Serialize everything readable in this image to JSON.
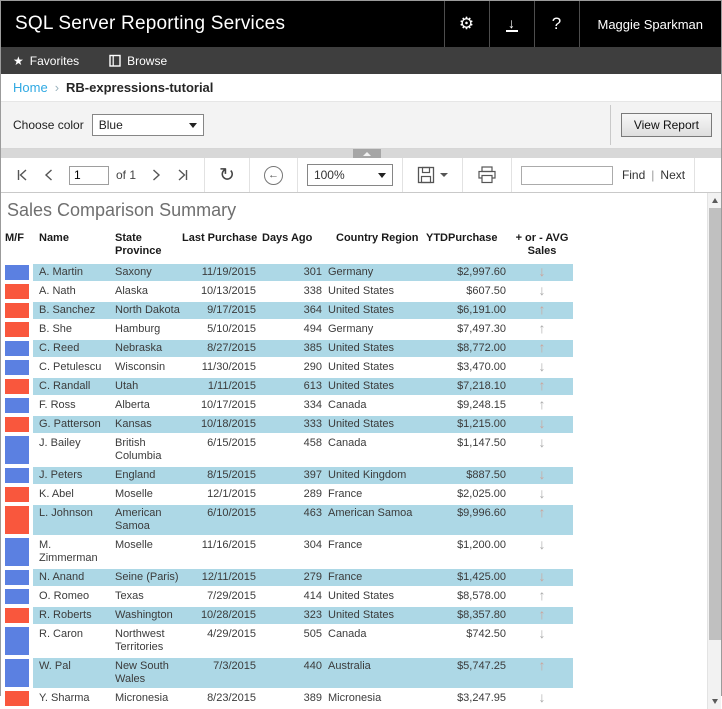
{
  "app": {
    "title": "SQL Server Reporting Services",
    "user": "Maggie Sparkman"
  },
  "nav": {
    "favorites": "Favorites",
    "browse": "Browse"
  },
  "breadcrumb": {
    "home": "Home",
    "separator": "›",
    "current": "RB-expressions-tutorial"
  },
  "parameters": {
    "label": "Choose color",
    "value": "Blue",
    "view_report": "View Report"
  },
  "toolbar": {
    "page_value": "1",
    "of_label": "of 1",
    "zoom_value": "100%",
    "find_label": "Find",
    "separator": "|",
    "next_label": "Next"
  },
  "icons": {
    "gear": "⚙",
    "download": "↓",
    "help": "?",
    "favorites_star": "★",
    "back_arrow": "←",
    "refresh": "↻",
    "up_arrow": "↑",
    "down_arrow": "↓"
  },
  "colors": {
    "male_swatch": "#5b80e1",
    "female_swatch": "#f9573d",
    "row_highlight": "#add8e6",
    "link_blue": "#2fa9e3"
  },
  "report": {
    "title": "Sales Comparison Summary",
    "columns": [
      "M/F",
      "Name",
      "State\nProvince",
      "Last Purchase",
      "Days Ago",
      "Country Region",
      "YTDPurchase",
      "+ or - AVG\nSales"
    ],
    "rows": [
      {
        "swatch": "blue",
        "name": "A. Martin",
        "state": "Saxony",
        "last_purchase": "11/19/2015",
        "days_ago": "301",
        "country": "Germany",
        "ytd_purchase": "$2,997.60",
        "trend": "down"
      },
      {
        "swatch": "red",
        "name": "A. Nath",
        "state": "Alaska",
        "last_purchase": "10/13/2015",
        "days_ago": "338",
        "country": "United States",
        "ytd_purchase": "$607.50",
        "trend": "down"
      },
      {
        "swatch": "red",
        "name": "B. Sanchez",
        "state": "North Dakota",
        "last_purchase": "9/17/2015",
        "days_ago": "364",
        "country": "United States",
        "ytd_purchase": "$6,191.00",
        "trend": "up"
      },
      {
        "swatch": "red",
        "name": "B. She",
        "state": "Hamburg",
        "last_purchase": "5/10/2015",
        "days_ago": "494",
        "country": "Germany",
        "ytd_purchase": "$7,497.30",
        "trend": "up"
      },
      {
        "swatch": "blue",
        "name": "C. Reed",
        "state": "Nebraska",
        "last_purchase": "8/27/2015",
        "days_ago": "385",
        "country": "United States",
        "ytd_purchase": "$8,772.00",
        "trend": "up"
      },
      {
        "swatch": "blue",
        "name": "C. Petulescu",
        "state": "Wisconsin",
        "last_purchase": "11/30/2015",
        "days_ago": "290",
        "country": "United States",
        "ytd_purchase": "$3,470.00",
        "trend": "down"
      },
      {
        "swatch": "red",
        "name": "C. Randall",
        "state": "Utah",
        "last_purchase": "1/11/2015",
        "days_ago": "613",
        "country": "United States",
        "ytd_purchase": "$7,218.10",
        "trend": "up"
      },
      {
        "swatch": "blue",
        "name": "F. Ross",
        "state": "Alberta",
        "last_purchase": "10/17/2015",
        "days_ago": "334",
        "country": "Canada",
        "ytd_purchase": "$9,248.15",
        "trend": "up"
      },
      {
        "swatch": "red",
        "name": "G. Patterson",
        "state": "Kansas",
        "last_purchase": "10/18/2015",
        "days_ago": "333",
        "country": "United States",
        "ytd_purchase": "$1,215.00",
        "trend": "down"
      },
      {
        "swatch": "blue",
        "name": "J. Bailey",
        "state": "British Columbia",
        "last_purchase": "6/15/2015",
        "days_ago": "458",
        "country": "Canada",
        "ytd_purchase": "$1,147.50",
        "trend": "down"
      },
      {
        "swatch": "blue",
        "name": "J. Peters",
        "state": "England",
        "last_purchase": "8/15/2015",
        "days_ago": "397",
        "country": "United Kingdom",
        "ytd_purchase": "$887.50",
        "trend": "down"
      },
      {
        "swatch": "red",
        "name": "K. Abel",
        "state": "Moselle",
        "last_purchase": "12/1/2015",
        "days_ago": "289",
        "country": "France",
        "ytd_purchase": "$2,025.00",
        "trend": "down"
      },
      {
        "swatch": "red",
        "name": "L. Johnson",
        "state": "American Samoa",
        "last_purchase": "6/10/2015",
        "days_ago": "463",
        "country": "American Samoa",
        "ytd_purchase": "$9,996.60",
        "trend": "up"
      },
      {
        "swatch": "blue",
        "name": "M. Zimmerman",
        "state": "Moselle",
        "last_purchase": "11/16/2015",
        "days_ago": "304",
        "country": "France",
        "ytd_purchase": "$1,200.00",
        "trend": "down"
      },
      {
        "swatch": "blue",
        "name": "N. Anand",
        "state": "Seine (Paris)",
        "last_purchase": "12/11/2015",
        "days_ago": "279",
        "country": "France",
        "ytd_purchase": "$1,425.00",
        "trend": "down"
      },
      {
        "swatch": "blue",
        "name": "O. Romeo",
        "state": "Texas",
        "last_purchase": "7/29/2015",
        "days_ago": "414",
        "country": "United States",
        "ytd_purchase": "$8,578.00",
        "trend": "up"
      },
      {
        "swatch": "red",
        "name": "R. Roberts",
        "state": "Washington",
        "last_purchase": "10/28/2015",
        "days_ago": "323",
        "country": "United States",
        "ytd_purchase": "$8,357.80",
        "trend": "up"
      },
      {
        "swatch": "blue",
        "name": "R. Caron",
        "state": "Northwest Territories",
        "last_purchase": "4/29/2015",
        "days_ago": "505",
        "country": "Canada",
        "ytd_purchase": "$742.50",
        "trend": "down"
      },
      {
        "swatch": "blue",
        "name": "W. Pal",
        "state": "New South Wales",
        "last_purchase": "7/3/2015",
        "days_ago": "440",
        "country": "Australia",
        "ytd_purchase": "$5,747.25",
        "trend": "up"
      },
      {
        "swatch": "red",
        "name": "Y. Sharma",
        "state": "Micronesia",
        "last_purchase": "8/23/2015",
        "days_ago": "389",
        "country": "Micronesia",
        "ytd_purchase": "$3,247.95",
        "trend": "down"
      }
    ]
  }
}
